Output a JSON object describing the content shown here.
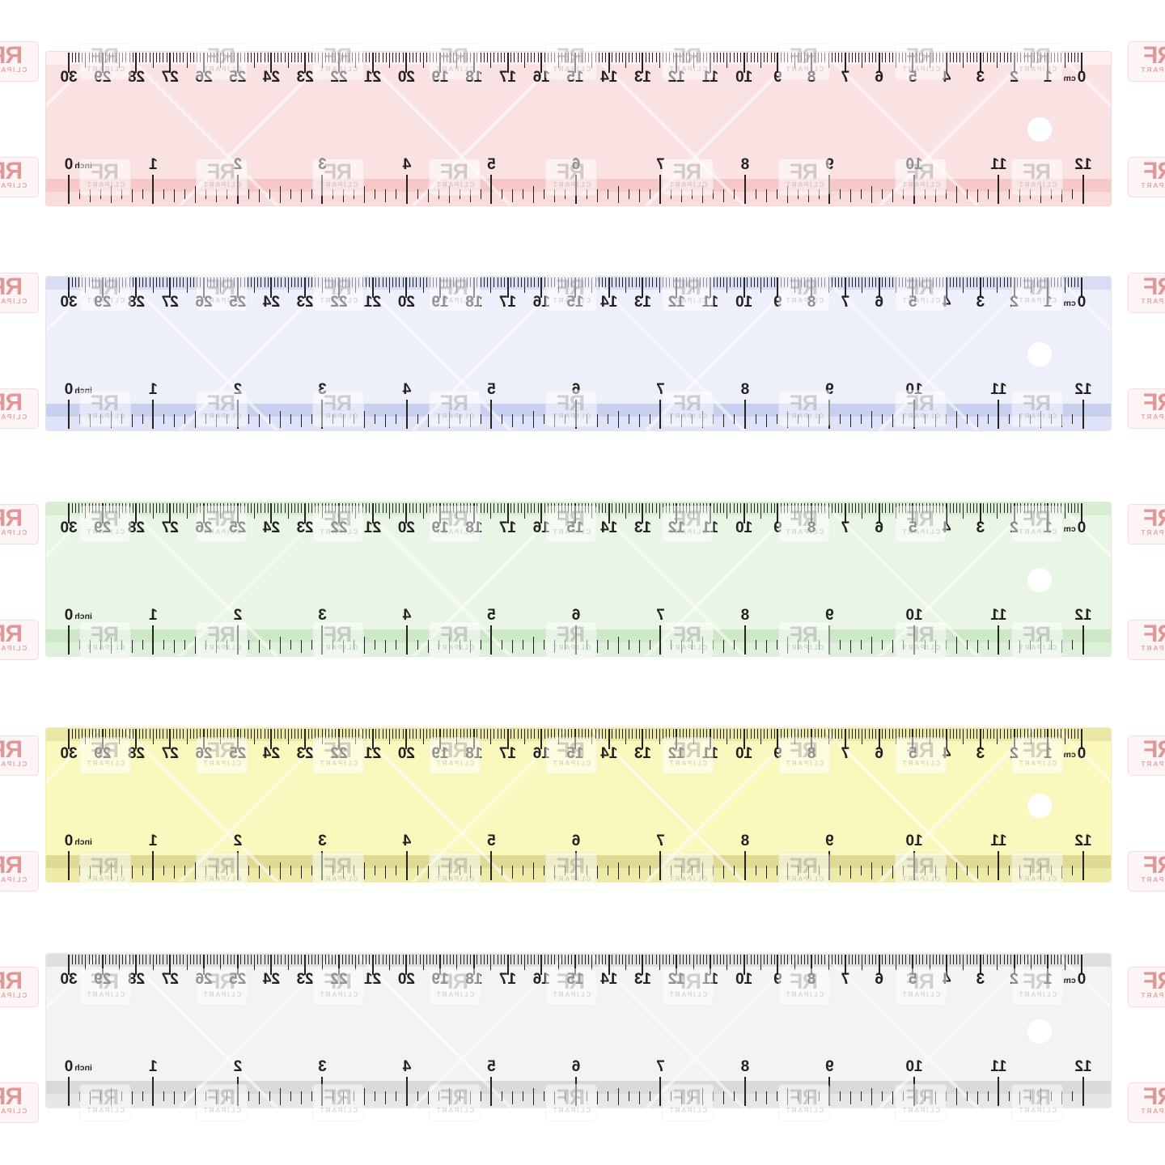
{
  "watermark": {
    "rf": "RF",
    "clipart": "CLIPART"
  },
  "units": {
    "cm": "cm",
    "inch": "inch"
  },
  "scales": {
    "cm": {
      "labels": [
        "0",
        "1",
        "2",
        "3",
        "4",
        "5",
        "6",
        "7",
        "8",
        "9",
        "10",
        "11",
        "12",
        "13",
        "14",
        "15",
        "16",
        "17",
        "18",
        "19",
        "20",
        "21",
        "22",
        "23",
        "24",
        "25",
        "26",
        "27",
        "28",
        "29",
        "30"
      ],
      "subdivisions_per_unit": 10
    },
    "inch": {
      "labels": [
        "0",
        "1",
        "2",
        "3",
        "4",
        "5",
        "6",
        "7",
        "8",
        "9",
        "10",
        "11",
        "12"
      ],
      "subdivisions_per_unit": 8
    }
  },
  "rulers": [
    {
      "name": "pink",
      "strip": "#fdefef",
      "body": "#fbe2e2",
      "band": "#f6c8c8",
      "foot": "#fbdcdc"
    },
    {
      "name": "blue",
      "strip": "#d9ddf4",
      "body": "#edf0fb",
      "band": "#c9cfee",
      "foot": "#dfe3f7"
    },
    {
      "name": "green",
      "strip": "#d8edd3",
      "body": "#e9f6e5",
      "band": "#cde8c6",
      "foot": "#def0d9"
    },
    {
      "name": "yellow",
      "strip": "#eae7a5",
      "body": "#faf8bc",
      "band": "#ded993",
      "foot": "#eeeba9"
    },
    {
      "name": "gray",
      "strip": "#dfdfdf",
      "body": "#f3f3f3",
      "band": "#d9d9d9",
      "foot": "#e6e6e6"
    }
  ]
}
